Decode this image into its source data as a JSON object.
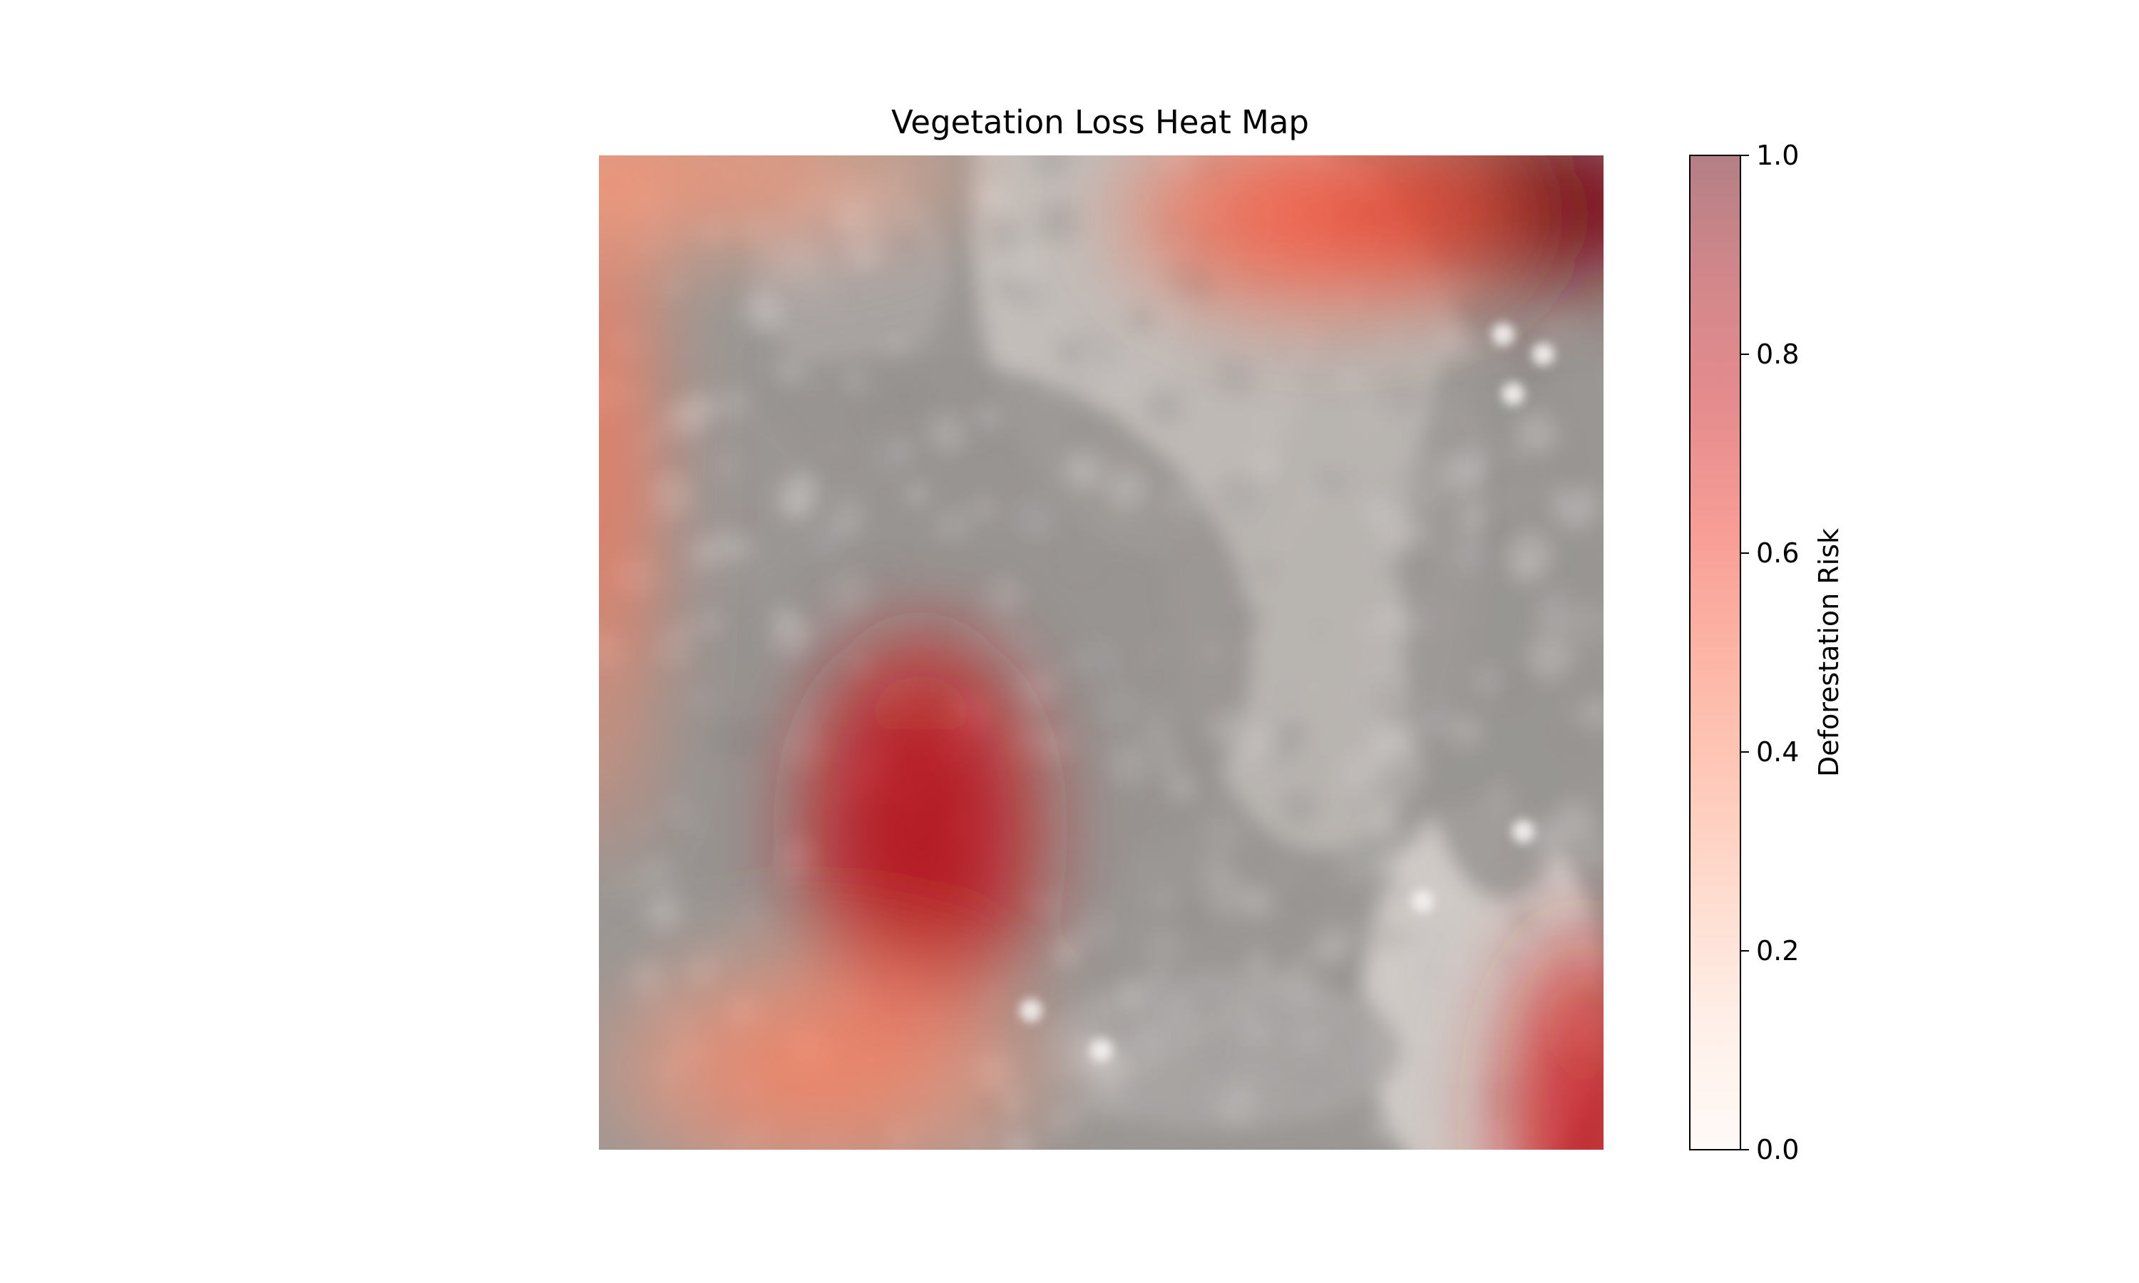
{
  "chart_data": {
    "type": "heatmap",
    "title": "Vegetation Loss Heat Map",
    "colorbar": {
      "label": "Deforestation Risk",
      "range": [
        0.0,
        1.0
      ],
      "ticks": [
        "0.0",
        "0.2",
        "0.4",
        "0.6",
        "0.8",
        "1.0"
      ],
      "colormap": "Reds",
      "colormap_stops": [
        "#fff5f0",
        "#fee0d2",
        "#fcbba1",
        "#fc9272",
        "#fb6a4a",
        "#ef3b2c",
        "#cb181d",
        "#a50f15",
        "#67000d"
      ]
    },
    "overlay_alpha": 0.5,
    "axes_visible": false,
    "background": "satellite image (grayscale terrain) under semi-transparent risk overlay",
    "hotspots": [
      {
        "name": "north-east",
        "center": [
          0.92,
          0.05
        ],
        "radius": [
          0.17,
          0.08
        ],
        "risk": 0.95
      },
      {
        "name": "north-east-fringe",
        "center": [
          0.72,
          0.06
        ],
        "radius": [
          0.2,
          0.1
        ],
        "risk": 0.5
      },
      {
        "name": "south-west",
        "center": [
          0.32,
          0.68
        ],
        "radius": [
          0.12,
          0.2
        ],
        "risk": 0.75
      },
      {
        "name": "south-east",
        "center": [
          0.98,
          0.98
        ],
        "radius": [
          0.08,
          0.2
        ],
        "risk": 0.7
      },
      {
        "name": "west-edge",
        "center": [
          0.0,
          0.3
        ],
        "radius": [
          0.06,
          0.4
        ],
        "risk": 0.4
      },
      {
        "name": "north-west",
        "center": [
          0.08,
          0.02
        ],
        "radius": [
          0.3,
          0.08
        ],
        "risk": 0.3
      },
      {
        "name": "south-band",
        "center": [
          0.22,
          0.92
        ],
        "radius": [
          0.22,
          0.12
        ],
        "risk": 0.35
      }
    ],
    "bright_spots": [
      [
        0.9,
        0.18
      ],
      [
        0.94,
        0.2
      ],
      [
        0.91,
        0.24
      ],
      [
        0.92,
        0.68
      ],
      [
        0.82,
        0.75
      ],
      [
        0.43,
        0.86
      ],
      [
        0.5,
        0.9
      ]
    ]
  }
}
